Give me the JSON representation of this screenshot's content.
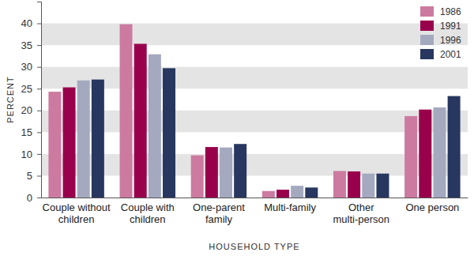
{
  "chart_data": {
    "type": "bar",
    "categories": [
      "Couple without children",
      "Couple with children",
      "One-parent family",
      "Multi-family",
      "Other multi-person",
      "One person"
    ],
    "series": [
      {
        "name": "1986",
        "color": "#cc7aa0",
        "values": [
          24.3,
          39.8,
          9.7,
          1.5,
          6.1,
          18.7
        ]
      },
      {
        "name": "1991",
        "color": "#99004c",
        "values": [
          25.3,
          35.3,
          11.6,
          1.8,
          6.0,
          20.2
        ]
      },
      {
        "name": "1996",
        "color": "#a4a9bf",
        "values": [
          26.9,
          32.9,
          11.5,
          2.7,
          5.5,
          20.7
        ]
      },
      {
        "name": "2001",
        "color": "#27375f",
        "values": [
          27.1,
          29.7,
          12.3,
          2.3,
          5.5,
          23.3
        ]
      }
    ],
    "x_label": "HOUSEHOLD TYPE",
    "y_label": "PERCENT",
    "ylim": [
      0,
      45
    ],
    "yticks": [
      0,
      5,
      10,
      15,
      20,
      25,
      30,
      35,
      40
    ],
    "grid": true,
    "legend": "top-right"
  }
}
